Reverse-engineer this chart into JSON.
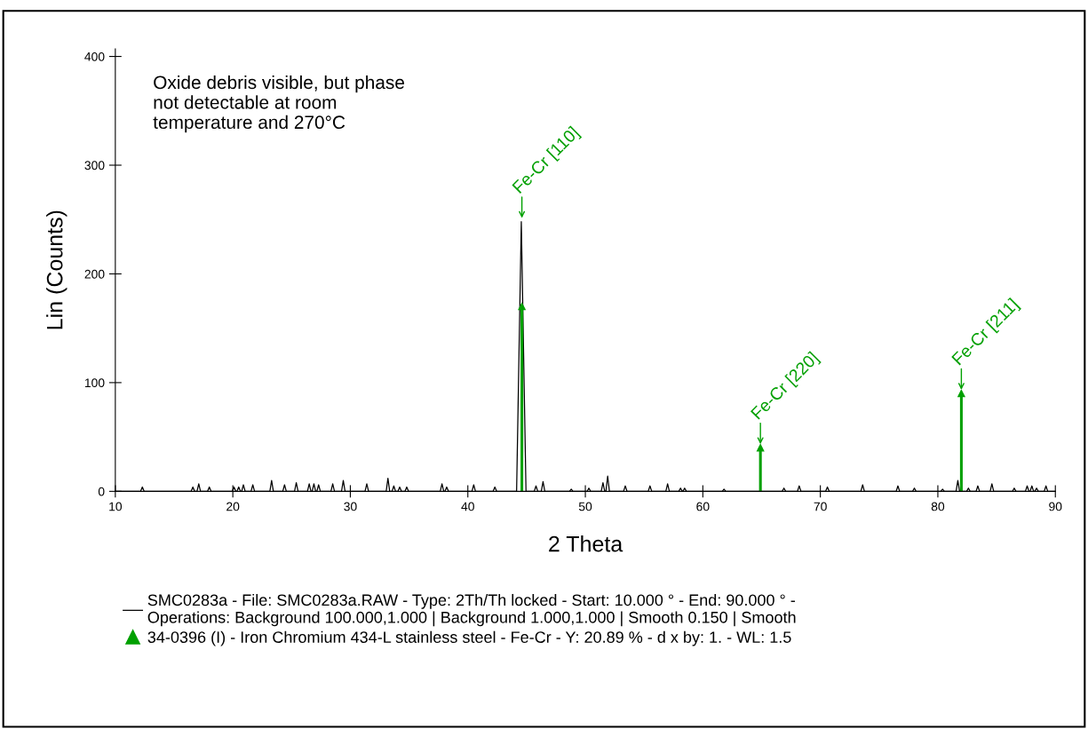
{
  "chart_data": {
    "type": "line",
    "xlabel": "2 Theta",
    "ylabel": "Lin (Counts)",
    "xlim": [
      10,
      90
    ],
    "xticks": [
      10,
      20,
      30,
      40,
      50,
      60,
      70,
      80,
      90
    ],
    "ylim": [
      0,
      407
    ],
    "yticks": [
      0,
      100,
      200,
      300,
      400
    ],
    "grid": false,
    "legend": "bottom",
    "annotations": [
      "Oxide debris visible, but phase\nnot detectable at room\ntemperature and 270°C",
      {
        "text": "Fe-Cr [110]",
        "x": 44.6,
        "y": 248
      },
      {
        "text": "Fe-Cr [220]",
        "x": 64.9,
        "y": 40
      },
      {
        "text": "Fe-Cr [211]",
        "x": 82.0,
        "y": 90
      }
    ],
    "series": [
      {
        "name": "SMC0283a - File: SMC0283a.RAW - Type: 2Th/Th locked - Start: 10.000 ° - End: 90.000 ° -\nOperations: Background 100.000,1.000 | Background 1.000,1.000 | Smooth 0.150 | Smooth",
        "color": "#000000",
        "marker": "none",
        "x": [
          10,
          12.15,
          12.3,
          12.45,
          16.45,
          16.6,
          16.75,
          16.95,
          17.1,
          17.25,
          17.85,
          18.0,
          18.15,
          19.95,
          20.1,
          20.25,
          20.35,
          20.5,
          20.65,
          20.75,
          20.9,
          21.05,
          21.55,
          21.7,
          21.85,
          23.15,
          23.3,
          23.45,
          24.25,
          24.4,
          24.55,
          25.25,
          25.4,
          25.55,
          26.35,
          26.5,
          26.65,
          26.75,
          26.9,
          27.05,
          27.15,
          27.3,
          27.45,
          28.35,
          28.5,
          28.65,
          29.25,
          29.4,
          29.55,
          31.25,
          31.4,
          31.55,
          33.05,
          33.2,
          33.35,
          33.55,
          33.7,
          33.85,
          34.05,
          34.2,
          34.35,
          34.65,
          34.8,
          34.95,
          37.65,
          37.8,
          37.95,
          38.05,
          38.2,
          38.35,
          40.35,
          40.5,
          40.65,
          42.15,
          42.3,
          42.45,
          44.15,
          44.55,
          44.95,
          45.65,
          45.8,
          45.95,
          46.25,
          46.4,
          46.55,
          48.65,
          48.8,
          48.95,
          50.15,
          50.3,
          50.45,
          51.35,
          51.5,
          51.65,
          51.75,
          51.9,
          52.05,
          53.25,
          53.4,
          53.55,
          55.35,
          55.5,
          55.65,
          56.85,
          57.0,
          57.15,
          57.95,
          58.1,
          58.25,
          58.3,
          58.45,
          58.6,
          61.65,
          61.8,
          61.95,
          66.75,
          66.9,
          67.05,
          68.05,
          68.2,
          68.35,
          70.45,
          70.6,
          70.75,
          73.45,
          73.6,
          73.75,
          76.45,
          76.6,
          76.75,
          77.85,
          78.0,
          78.15,
          80.25,
          80.4,
          80.55,
          81.55,
          81.7,
          81.85,
          82.45,
          82.6,
          82.75,
          83.25,
          83.4,
          83.55,
          84.45,
          84.6,
          84.75,
          86.35,
          86.5,
          86.65,
          87.45,
          87.6,
          87.75,
          87.85,
          88.0,
          88.15,
          88.25,
          88.4,
          88.55,
          89.05,
          89.2,
          89.35,
          90
        ],
        "values": [
          0,
          0,
          4,
          0,
          0,
          4,
          0,
          0,
          7,
          0,
          0,
          4,
          0,
          0,
          4,
          0,
          0,
          4,
          0,
          0,
          6,
          0,
          0,
          6,
          0,
          0,
          10,
          0,
          0,
          6,
          0,
          0,
          8,
          0,
          0,
          7,
          0,
          0,
          7,
          0,
          0,
          6,
          0,
          0,
          7,
          0,
          0,
          10,
          0,
          0,
          7,
          0,
          0,
          12,
          0,
          0,
          5,
          0,
          0,
          4,
          0,
          0,
          4,
          0,
          0,
          7,
          0,
          0,
          4,
          0,
          0,
          6,
          0,
          0,
          4,
          0,
          0,
          248,
          0,
          0,
          5,
          0,
          0,
          9,
          0,
          0,
          2,
          0,
          0,
          3,
          0,
          0,
          8,
          0,
          0,
          14,
          0,
          0,
          5,
          0,
          0,
          5,
          0,
          0,
          7,
          0,
          0,
          3,
          0,
          0,
          3,
          0,
          0,
          2,
          0,
          0,
          3,
          0,
          0,
          5,
          0,
          0,
          4,
          0,
          0,
          6,
          0,
          0,
          5,
          0,
          0,
          3,
          0,
          0,
          2,
          0,
          0,
          10,
          0,
          0,
          3,
          0,
          0,
          5,
          0,
          0,
          7,
          0,
          0,
          3,
          0,
          0,
          5,
          0,
          0,
          5,
          0,
          0,
          3,
          0,
          0,
          5,
          0,
          0
        ]
      },
      {
        "name": "34-0396 (I) - Iron Chromium 434-L stainless steel - Fe-Cr - Y: 20.89 % - d x by: 1. - WL: 1.5",
        "type": "lollipop",
        "color": "#00a000",
        "marker": "triangle",
        "x": [
          44.6,
          64.9,
          82.0
        ],
        "values": [
          170,
          40,
          90
        ]
      }
    ]
  }
}
